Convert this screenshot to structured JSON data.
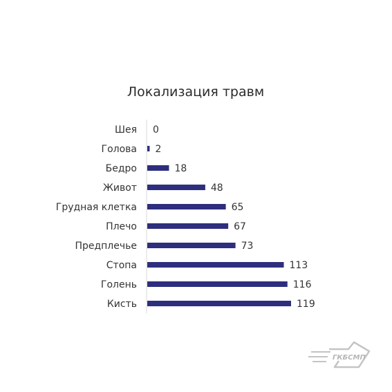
{
  "chart_data": {
    "type": "bar",
    "orientation": "horizontal",
    "title": "Локализация травм",
    "categories": [
      "Шея",
      "Голова",
      "Бедро",
      "Живот",
      "Грудная клетка",
      "Плечо",
      "Предплечье",
      "Стопа",
      "Голень",
      "Кисть"
    ],
    "values": [
      0,
      2,
      18,
      48,
      65,
      67,
      73,
      113,
      116,
      119
    ],
    "xlabel": "",
    "ylabel": "",
    "xlim": [
      0,
      119
    ],
    "grid": false,
    "legend": "none",
    "bar_color": "#2e2e7e",
    "data_labels": true
  },
  "logo": {
    "text": "ГКБСМП",
    "color": "#b5b5b5"
  }
}
